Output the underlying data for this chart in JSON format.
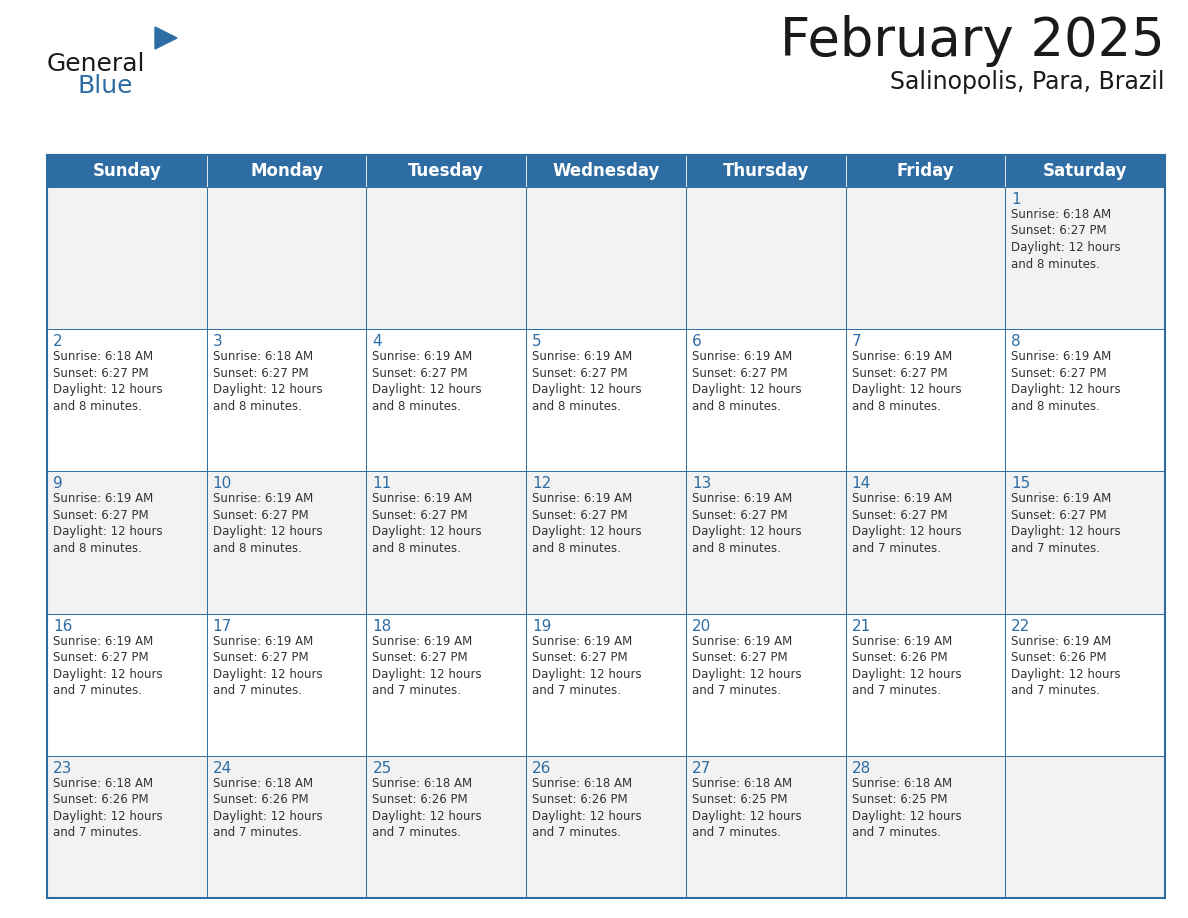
{
  "title": "February 2025",
  "subtitle": "Salinopolis, Para, Brazil",
  "header_bg": "#2E6DA4",
  "header_text_color": "#FFFFFF",
  "cell_bg_light": "#F2F2F2",
  "cell_bg_white": "#FFFFFF",
  "cell_border_color": "#2E6DA4",
  "day_number_color": "#2E6DA4",
  "info_text_color": "#333333",
  "days_of_week": [
    "Sunday",
    "Monday",
    "Tuesday",
    "Wednesday",
    "Thursday",
    "Friday",
    "Saturday"
  ],
  "calendar_data": [
    [
      null,
      null,
      null,
      null,
      null,
      null,
      {
        "day": "1",
        "sunrise": "6:18 AM",
        "sunset": "6:27 PM",
        "daylight_hours": "12",
        "daylight_minutes": "8"
      }
    ],
    [
      {
        "day": "2",
        "sunrise": "6:18 AM",
        "sunset": "6:27 PM",
        "daylight_hours": "12",
        "daylight_minutes": "8"
      },
      {
        "day": "3",
        "sunrise": "6:18 AM",
        "sunset": "6:27 PM",
        "daylight_hours": "12",
        "daylight_minutes": "8"
      },
      {
        "day": "4",
        "sunrise": "6:19 AM",
        "sunset": "6:27 PM",
        "daylight_hours": "12",
        "daylight_minutes": "8"
      },
      {
        "day": "5",
        "sunrise": "6:19 AM",
        "sunset": "6:27 PM",
        "daylight_hours": "12",
        "daylight_minutes": "8"
      },
      {
        "day": "6",
        "sunrise": "6:19 AM",
        "sunset": "6:27 PM",
        "daylight_hours": "12",
        "daylight_minutes": "8"
      },
      {
        "day": "7",
        "sunrise": "6:19 AM",
        "sunset": "6:27 PM",
        "daylight_hours": "12",
        "daylight_minutes": "8"
      },
      {
        "day": "8",
        "sunrise": "6:19 AM",
        "sunset": "6:27 PM",
        "daylight_hours": "12",
        "daylight_minutes": "8"
      }
    ],
    [
      {
        "day": "9",
        "sunrise": "6:19 AM",
        "sunset": "6:27 PM",
        "daylight_hours": "12",
        "daylight_minutes": "8"
      },
      {
        "day": "10",
        "sunrise": "6:19 AM",
        "sunset": "6:27 PM",
        "daylight_hours": "12",
        "daylight_minutes": "8"
      },
      {
        "day": "11",
        "sunrise": "6:19 AM",
        "sunset": "6:27 PM",
        "daylight_hours": "12",
        "daylight_minutes": "8"
      },
      {
        "day": "12",
        "sunrise": "6:19 AM",
        "sunset": "6:27 PM",
        "daylight_hours": "12",
        "daylight_minutes": "8"
      },
      {
        "day": "13",
        "sunrise": "6:19 AM",
        "sunset": "6:27 PM",
        "daylight_hours": "12",
        "daylight_minutes": "8"
      },
      {
        "day": "14",
        "sunrise": "6:19 AM",
        "sunset": "6:27 PM",
        "daylight_hours": "12",
        "daylight_minutes": "7"
      },
      {
        "day": "15",
        "sunrise": "6:19 AM",
        "sunset": "6:27 PM",
        "daylight_hours": "12",
        "daylight_minutes": "7"
      }
    ],
    [
      {
        "day": "16",
        "sunrise": "6:19 AM",
        "sunset": "6:27 PM",
        "daylight_hours": "12",
        "daylight_minutes": "7"
      },
      {
        "day": "17",
        "sunrise": "6:19 AM",
        "sunset": "6:27 PM",
        "daylight_hours": "12",
        "daylight_minutes": "7"
      },
      {
        "day": "18",
        "sunrise": "6:19 AM",
        "sunset": "6:27 PM",
        "daylight_hours": "12",
        "daylight_minutes": "7"
      },
      {
        "day": "19",
        "sunrise": "6:19 AM",
        "sunset": "6:27 PM",
        "daylight_hours": "12",
        "daylight_minutes": "7"
      },
      {
        "day": "20",
        "sunrise": "6:19 AM",
        "sunset": "6:27 PM",
        "daylight_hours": "12",
        "daylight_minutes": "7"
      },
      {
        "day": "21",
        "sunrise": "6:19 AM",
        "sunset": "6:26 PM",
        "daylight_hours": "12",
        "daylight_minutes": "7"
      },
      {
        "day": "22",
        "sunrise": "6:19 AM",
        "sunset": "6:26 PM",
        "daylight_hours": "12",
        "daylight_minutes": "7"
      }
    ],
    [
      {
        "day": "23",
        "sunrise": "6:18 AM",
        "sunset": "6:26 PM",
        "daylight_hours": "12",
        "daylight_minutes": "7"
      },
      {
        "day": "24",
        "sunrise": "6:18 AM",
        "sunset": "6:26 PM",
        "daylight_hours": "12",
        "daylight_minutes": "7"
      },
      {
        "day": "25",
        "sunrise": "6:18 AM",
        "sunset": "6:26 PM",
        "daylight_hours": "12",
        "daylight_minutes": "7"
      },
      {
        "day": "26",
        "sunrise": "6:18 AM",
        "sunset": "6:26 PM",
        "daylight_hours": "12",
        "daylight_minutes": "7"
      },
      {
        "day": "27",
        "sunrise": "6:18 AM",
        "sunset": "6:25 PM",
        "daylight_hours": "12",
        "daylight_minutes": "7"
      },
      {
        "day": "28",
        "sunrise": "6:18 AM",
        "sunset": "6:25 PM",
        "daylight_hours": "12",
        "daylight_minutes": "7"
      },
      null
    ]
  ],
  "logo_text_general": "General",
  "logo_text_blue": "Blue",
  "logo_triangle_color": "#2E6DA4",
  "title_fontsize": 38,
  "subtitle_fontsize": 17,
  "header_fontsize": 12,
  "day_number_fontsize": 11,
  "cell_text_fontsize": 8.5
}
